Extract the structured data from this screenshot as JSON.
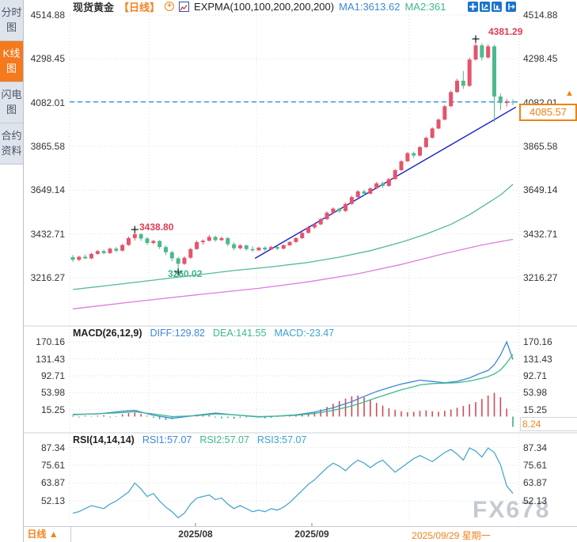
{
  "sidebar": {
    "items": [
      {
        "label": "分时图",
        "active": false
      },
      {
        "label": "K线图",
        "active": true
      },
      {
        "label": "闪电图",
        "active": false
      },
      {
        "label": "合约资料",
        "active": false
      }
    ]
  },
  "header": {
    "symbol": "现货黄金",
    "period": "【日线】",
    "indicator": "EXPMA(100,100,200,200,200)",
    "ma1": "MA1:3613.62",
    "ma2": "MA2:361"
  },
  "toolbar": {
    "icons": [
      "pan-tool",
      "measure-axis-tool",
      "zoom-axis-tool",
      "collapse-panel"
    ]
  },
  "main_axis": [
    "4514.88",
    "4298.45",
    "4082.01",
    "3865.58",
    "3649.14",
    "3432.71",
    "3216.27"
  ],
  "macd_panel": {
    "title": "MACD(26,12,9)",
    "diff": "DIFF:129.82",
    "dea": "DEA:141.55",
    "macd": "MACD:-23.47",
    "axis": [
      "170.16",
      "131.43",
      "92.71",
      "53.98",
      "15.25"
    ],
    "tag": "8.24"
  },
  "rsi_panel": {
    "title": "RSI(14,14,14)",
    "rsi1": "RSI1:57.07",
    "rsi2": "RSI2:57.07",
    "rsi3": "RSI3:57.07",
    "axis": [
      "87.34",
      "75.61",
      "63.87",
      "52.13"
    ]
  },
  "annotations": {
    "peak": "4381.29",
    "swing_high": "3438.80",
    "swing_low": "3260.02",
    "last_price": "4085.57",
    "up_arrow": "▲"
  },
  "bottom_bar": {
    "period": "日线",
    "dropdown_arrow": "▲",
    "date1": "2025/08",
    "date2": "2025/09",
    "current_date": "2025/09/29 星期一"
  },
  "watermark": "FX678",
  "colors": {
    "up": "#e4546b",
    "down": "#4cb98c",
    "accent_orange": "#f5821f",
    "diff_blue": "#3d87d9",
    "dea_green": "#3cb98c",
    "rsi_line": "#4aa7cf",
    "trendline": "#1522c8",
    "dashed_level": "#3f9fe6",
    "expma_fast": "#52b999",
    "expma_slow": "#dd7ddd",
    "hist_up": "#d14b55",
    "hist_down": "#3fae7e",
    "toolbar_blue": "#1b74cb"
  },
  "chart_data": {
    "type": "candlestick",
    "title": "现货黄金 日线 (Spot Gold Daily)",
    "x_axis_dates": [
      "2025/08",
      "2025/09",
      "2025/09/29 星期一"
    ],
    "main": {
      "ylim": [
        3216.27,
        4514.88
      ],
      "last_price": 4085.57,
      "dashed_level": 4082.01,
      "ohlc": [
        [
          3318,
          3328,
          3295,
          3305
        ],
        [
          3305,
          3325,
          3298,
          3320
        ],
        [
          3320,
          3332,
          3308,
          3312
        ],
        [
          3312,
          3340,
          3308,
          3334
        ],
        [
          3334,
          3354,
          3330,
          3348
        ],
        [
          3348,
          3356,
          3332,
          3338
        ],
        [
          3338,
          3366,
          3334,
          3360
        ],
        [
          3360,
          3368,
          3342,
          3350
        ],
        [
          3350,
          3384,
          3346,
          3378
        ],
        [
          3378,
          3420,
          3374,
          3412
        ],
        [
          3412,
          3438.8,
          3400,
          3432
        ],
        [
          3432,
          3436,
          3398,
          3410
        ],
        [
          3410,
          3418,
          3378,
          3388
        ],
        [
          3388,
          3404,
          3382,
          3398
        ],
        [
          3398,
          3402,
          3358,
          3368
        ],
        [
          3368,
          3376,
          3328,
          3342
        ],
        [
          3342,
          3350,
          3298,
          3312
        ],
        [
          3312,
          3320,
          3260.02,
          3285
        ],
        [
          3285,
          3322,
          3280,
          3315
        ],
        [
          3315,
          3364,
          3310,
          3358
        ],
        [
          3358,
          3400,
          3354,
          3392
        ],
        [
          3392,
          3406,
          3380,
          3399
        ],
        [
          3399,
          3428,
          3395,
          3418
        ],
        [
          3418,
          3424,
          3394,
          3402
        ],
        [
          3402,
          3420,
          3398,
          3412
        ],
        [
          3412,
          3418,
          3372,
          3382
        ],
        [
          3382,
          3392,
          3352,
          3362
        ],
        [
          3362,
          3382,
          3356,
          3376
        ],
        [
          3376,
          3380,
          3350,
          3358
        ],
        [
          3358,
          3372,
          3344,
          3352
        ],
        [
          3352,
          3370,
          3348,
          3365
        ],
        [
          3365,
          3372,
          3348,
          3356
        ],
        [
          3356,
          3374,
          3352,
          3368
        ],
        [
          3368,
          3374,
          3352,
          3360
        ],
        [
          3360,
          3382,
          3356,
          3377
        ],
        [
          3377,
          3398,
          3372,
          3393
        ],
        [
          3393,
          3417,
          3389,
          3412
        ],
        [
          3412,
          3444,
          3407,
          3438
        ],
        [
          3438,
          3472,
          3434,
          3465
        ],
        [
          3465,
          3487,
          3457,
          3480
        ],
        [
          3480,
          3512,
          3476,
          3506
        ],
        [
          3506,
          3544,
          3502,
          3538
        ],
        [
          3538,
          3564,
          3532,
          3558
        ],
        [
          3558,
          3562,
          3536,
          3546
        ],
        [
          3546,
          3587,
          3542,
          3581
        ],
        [
          3581,
          3622,
          3577,
          3615
        ],
        [
          3615,
          3650,
          3610,
          3643
        ],
        [
          3643,
          3652,
          3622,
          3632
        ],
        [
          3632,
          3664,
          3628,
          3658
        ],
        [
          3658,
          3690,
          3654,
          3683
        ],
        [
          3683,
          3692,
          3660,
          3670
        ],
        [
          3670,
          3710,
          3666,
          3704
        ],
        [
          3704,
          3754,
          3700,
          3748
        ],
        [
          3748,
          3798,
          3744,
          3792
        ],
        [
          3792,
          3838,
          3788,
          3832
        ],
        [
          3832,
          3840,
          3808,
          3820
        ],
        [
          3820,
          3868,
          3816,
          3862
        ],
        [
          3862,
          3914,
          3858,
          3908
        ],
        [
          3908,
          3960,
          3904,
          3954
        ],
        [
          3954,
          4004,
          3950,
          3998
        ],
        [
          3998,
          4070,
          3994,
          4064
        ],
        [
          4064,
          4142,
          4060,
          4134
        ],
        [
          4134,
          4200,
          4130,
          4190
        ],
        [
          4190,
          4238,
          4150,
          4165
        ],
        [
          4165,
          4305,
          4160,
          4295
        ],
        [
          4295,
          4381.29,
          4290,
          4365
        ],
        [
          4365,
          4375,
          4290,
          4305
        ],
        [
          4305,
          4370,
          4300,
          4360
        ],
        [
          4360,
          4368,
          3985,
          4112
        ],
        [
          4112,
          4128,
          4044,
          4080
        ],
        [
          4080,
          4100,
          4062,
          4086
        ],
        [
          4086,
          4098,
          4070,
          4085.57
        ]
      ],
      "markers": [
        {
          "i": 10,
          "price": 3438.8,
          "side": "above"
        },
        {
          "i": 17,
          "price": 3260.02,
          "side": "below"
        },
        {
          "i": 65,
          "price": 4381.29,
          "side": "above"
        }
      ],
      "trendline": {
        "i1": 29.4,
        "p1": 3312,
        "i2": 71.5,
        "p2": 4060
      },
      "expma_fast_points": [
        [
          0,
          3158
        ],
        [
          8,
          3186
        ],
        [
          14,
          3208
        ],
        [
          20,
          3230
        ],
        [
          26,
          3252
        ],
        [
          32,
          3270
        ],
        [
          38,
          3292
        ],
        [
          43,
          3318
        ],
        [
          48,
          3350
        ],
        [
          53,
          3392
        ],
        [
          57,
          3432
        ],
        [
          61,
          3480
        ],
        [
          64,
          3528
        ],
        [
          67,
          3586
        ],
        [
          69,
          3625
        ],
        [
          71,
          3678
        ]
      ],
      "expma_slow_points": [
        [
          0,
          3062
        ],
        [
          10,
          3098
        ],
        [
          20,
          3132
        ],
        [
          30,
          3164
        ],
        [
          38,
          3196
        ],
        [
          46,
          3236
        ],
        [
          53,
          3282
        ],
        [
          60,
          3336
        ],
        [
          66,
          3378
        ],
        [
          71,
          3406
        ]
      ]
    },
    "macd": {
      "params": [
        26,
        12,
        9
      ],
      "diff": 129.82,
      "dea": 141.55,
      "macd": -23.47,
      "histogram": [
        2,
        -2,
        2,
        -1,
        2,
        3,
        -2,
        1,
        5,
        8,
        9,
        6,
        2,
        -3,
        -6,
        -8,
        -6,
        -3,
        1,
        3,
        4,
        5,
        3,
        -2,
        -4,
        -3,
        -5,
        -3,
        -2,
        1,
        -2,
        -4,
        -3,
        -1,
        1,
        2,
        3,
        4,
        7,
        11,
        16,
        22,
        29,
        35,
        41,
        46,
        48,
        44,
        38,
        31,
        25,
        19,
        15,
        12,
        10,
        11,
        13,
        14,
        12,
        11,
        13,
        16,
        20,
        24,
        28,
        33,
        40,
        48,
        54,
        44,
        18,
        -23.47
      ],
      "diff_points": [
        [
          0,
          5
        ],
        [
          4,
          6
        ],
        [
          8,
          12
        ],
        [
          10,
          14
        ],
        [
          13,
          3
        ],
        [
          16,
          -4
        ],
        [
          20,
          3
        ],
        [
          23,
          8
        ],
        [
          26,
          4
        ],
        [
          30,
          -1
        ],
        [
          33,
          1
        ],
        [
          36,
          4
        ],
        [
          39,
          10
        ],
        [
          42,
          20
        ],
        [
          45,
          34
        ],
        [
          47,
          46
        ],
        [
          49,
          57
        ],
        [
          51,
          66
        ],
        [
          53,
          74
        ],
        [
          55,
          80
        ],
        [
          56,
          83
        ],
        [
          58,
          80
        ],
        [
          60,
          77
        ],
        [
          62,
          80
        ],
        [
          63,
          84
        ],
        [
          64,
          88
        ],
        [
          65,
          94
        ],
        [
          66,
          100
        ],
        [
          67,
          105
        ],
        [
          68,
          118
        ],
        [
          69,
          140
        ],
        [
          70,
          170.16
        ],
        [
          71,
          129.82
        ]
      ],
      "dea_points": [
        [
          0,
          4
        ],
        [
          8,
          9
        ],
        [
          10,
          11
        ],
        [
          13,
          6
        ],
        [
          16,
          0
        ],
        [
          20,
          2
        ],
        [
          23,
          6
        ],
        [
          26,
          4
        ],
        [
          30,
          0
        ],
        [
          33,
          1
        ],
        [
          36,
          3
        ],
        [
          39,
          7
        ],
        [
          42,
          14
        ],
        [
          45,
          24
        ],
        [
          47,
          33
        ],
        [
          49,
          43
        ],
        [
          51,
          52
        ],
        [
          53,
          61
        ],
        [
          55,
          68
        ],
        [
          56,
          72
        ],
        [
          58,
          75
        ],
        [
          60,
          76
        ],
        [
          62,
          77
        ],
        [
          63,
          79
        ],
        [
          64,
          81
        ],
        [
          65,
          84
        ],
        [
          66,
          87
        ],
        [
          67,
          91
        ],
        [
          68,
          97
        ],
        [
          69,
          106
        ],
        [
          70,
          122
        ],
        [
          71,
          141.55
        ]
      ]
    },
    "rsi": {
      "params": [
        14,
        14,
        14
      ],
      "rsi1": 57.07,
      "rsi2": 57.07,
      "rsi3": 57.07,
      "values": [
        44,
        45,
        47,
        49,
        48,
        47,
        50,
        52,
        55,
        58,
        63.9,
        60,
        55,
        57,
        52,
        48,
        45,
        41,
        44,
        50,
        54,
        55,
        56,
        53,
        54,
        50,
        47,
        49,
        47,
        45,
        46,
        45,
        47,
        46,
        48,
        51,
        55,
        59,
        63,
        66,
        70,
        74,
        77,
        75,
        72,
        76,
        79,
        77,
        74,
        77,
        79,
        75,
        71,
        74,
        77,
        80,
        82,
        80,
        78,
        81,
        84,
        86,
        83,
        79,
        87,
        85,
        81,
        87,
        84,
        76,
        62,
        57.07
      ]
    }
  }
}
